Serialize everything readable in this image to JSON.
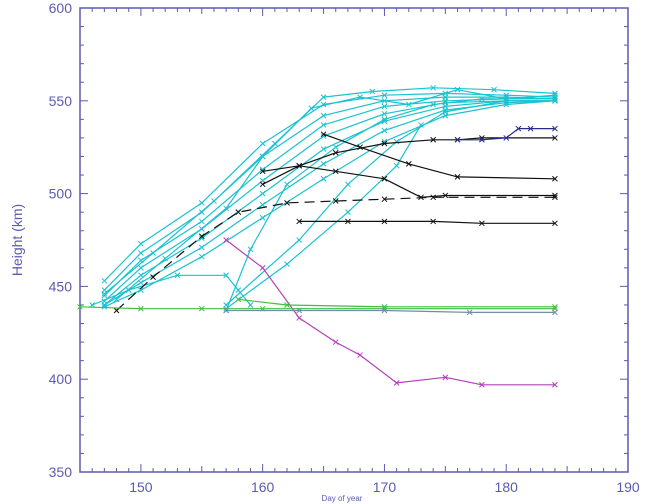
{
  "chart_data": {
    "type": "line",
    "title": "",
    "xlabel": "Day of year",
    "ylabel": "Height (km)",
    "xlim": [
      145,
      190
    ],
    "ylim": [
      350,
      600
    ],
    "xticks": [
      150,
      160,
      170,
      180,
      190
    ],
    "yticks": [
      350,
      400,
      450,
      500,
      550,
      600
    ],
    "grid": false,
    "legend": "none",
    "colors": {
      "frame": "#5b5bb0",
      "cyan": "#19c3cf",
      "black": "#111111",
      "navy": "#2a2a8c",
      "magenta": "#b340b8",
      "green": "#3fbf3f",
      "steel": "#6f8fa8"
    },
    "series": [
      {
        "color": "cyan",
        "dash": "",
        "x": [
          147,
          150,
          155,
          160,
          165,
          170,
          175,
          180,
          184
        ],
        "y": [
          453,
          473,
          495,
          527,
          548,
          553,
          554,
          553,
          552
        ]
      },
      {
        "color": "cyan",
        "dash": "",
        "x": [
          147,
          150,
          155,
          160,
          165,
          170,
          175,
          180,
          184
        ],
        "y": [
          448,
          468,
          490,
          520,
          542,
          550,
          552,
          552,
          551
        ]
      },
      {
        "color": "cyan",
        "dash": "",
        "x": [
          147,
          150,
          155,
          160,
          165,
          170,
          175,
          180,
          184
        ],
        "y": [
          445,
          464,
          485,
          513,
          537,
          547,
          550,
          551,
          551
        ]
      },
      {
        "color": "cyan",
        "dash": "",
        "x": [
          147,
          150,
          155,
          160,
          165,
          170,
          175,
          180,
          184
        ],
        "y": [
          442,
          460,
          481,
          507,
          531,
          543,
          549,
          550,
          550
        ]
      },
      {
        "color": "cyan",
        "dash": "",
        "x": [
          147,
          150,
          155,
          160,
          165,
          170,
          175,
          180,
          184
        ],
        "y": [
          440,
          456,
          476,
          500,
          524,
          539,
          547,
          550,
          550
        ]
      },
      {
        "color": "cyan",
        "dash": "",
        "x": [
          147,
          150,
          155,
          160,
          165,
          170,
          175,
          180,
          184
        ],
        "y": [
          440,
          452,
          471,
          494,
          516,
          534,
          545,
          549,
          550
        ]
      },
      {
        "color": "cyan",
        "dash": "",
        "x": [
          147,
          150,
          155,
          160,
          165,
          170,
          175,
          180,
          184
        ],
        "y": [
          439,
          448,
          466,
          487,
          508,
          528,
          542,
          548,
          550
        ]
      },
      {
        "color": "cyan",
        "dash": "",
        "x": [
          148,
          152,
          157,
          160,
          164,
          168,
          172,
          176,
          180,
          184
        ],
        "y": [
          443,
          465,
          492,
          520,
          546,
          552,
          548,
          556,
          551,
          553
        ]
      },
      {
        "color": "cyan",
        "dash": "",
        "x": [
          147,
          151,
          156,
          161,
          165,
          169,
          174,
          179,
          184
        ],
        "y": [
          446,
          468,
          496,
          527,
          552,
          555,
          557,
          556,
          554
        ]
      },
      {
        "color": "cyan",
        "dash": "",
        "x": [
          157,
          159,
          162,
          166,
          170,
          174,
          178,
          184
        ],
        "y": [
          437,
          470,
          505,
          525,
          540,
          548,
          551,
          551
        ]
      },
      {
        "color": "cyan",
        "dash": "",
        "x": [
          157,
          163,
          167,
          171,
          175,
          180,
          184
        ],
        "y": [
          440,
          475,
          505,
          528,
          544,
          550,
          550
        ]
      },
      {
        "color": "cyan",
        "dash": "",
        "x": [
          157,
          162,
          167,
          171,
          173
        ],
        "y": [
          438,
          462,
          490,
          515,
          537
        ]
      },
      {
        "color": "cyan",
        "dash": "",
        "x": [
          146,
          149,
          153,
          157,
          158,
          159
        ],
        "y": [
          440,
          448,
          456,
          456,
          448,
          440
        ]
      },
      {
        "color": "black",
        "dash": "",
        "x": [
          160,
          163,
          166,
          170,
          174,
          176,
          178,
          184
        ],
        "y": [
          505,
          515,
          522,
          527,
          529,
          529,
          530,
          530
        ]
      },
      {
        "color": "navy",
        "dash": "",
        "x": [
          176,
          178,
          180,
          181,
          182,
          184
        ],
        "y": [
          529,
          529,
          530,
          535,
          535,
          535
        ]
      },
      {
        "color": "black",
        "dash": "",
        "x": [
          165,
          168,
          172,
          176,
          184
        ],
        "y": [
          532,
          525,
          516,
          509,
          508
        ]
      },
      {
        "color": "black",
        "dash": "",
        "x": [
          160,
          163,
          166,
          170,
          173,
          175,
          184
        ],
        "y": [
          512,
          515,
          512,
          508,
          498,
          499,
          499
        ]
      },
      {
        "color": "black",
        "dash": "10 6",
        "x": [
          148,
          151,
          155,
          158,
          162,
          166,
          170,
          174,
          184
        ],
        "y": [
          437,
          455,
          477,
          490,
          495,
          496,
          497,
          498,
          498
        ]
      },
      {
        "color": "black",
        "dash": "",
        "x": [
          163,
          167,
          170,
          174,
          178,
          184
        ],
        "y": [
          485,
          485,
          485,
          485,
          484,
          484
        ]
      },
      {
        "color": "magenta",
        "dash": "",
        "x": [
          157,
          160,
          163,
          166,
          168,
          171,
          175,
          178,
          184
        ],
        "y": [
          475,
          460,
          433,
          420,
          413,
          398,
          401,
          397,
          397
        ]
      },
      {
        "color": "green",
        "dash": "",
        "x": [
          145,
          150,
          155,
          160,
          170,
          184
        ],
        "y": [
          439,
          438,
          438,
          438,
          438,
          438
        ]
      },
      {
        "color": "green",
        "dash": "",
        "x": [
          158,
          162,
          170,
          184
        ],
        "y": [
          443,
          440,
          439,
          439
        ]
      },
      {
        "color": "steel",
        "dash": "",
        "x": [
          157,
          163,
          170,
          177,
          184
        ],
        "y": [
          437,
          437,
          437,
          436,
          436
        ]
      }
    ]
  }
}
